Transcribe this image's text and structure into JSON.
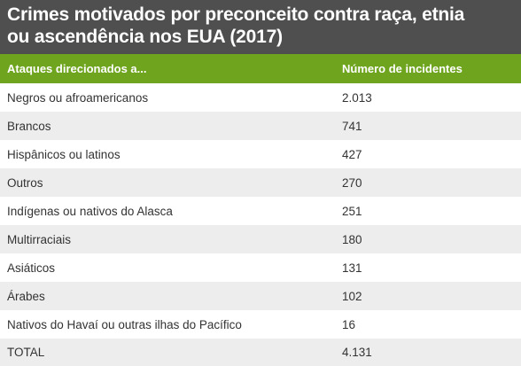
{
  "title": {
    "line1": "Crimes motivados por preconceito contra raça, etnia",
    "line2": "ou ascendência nos EUA (2017)"
  },
  "colors": {
    "title_background": "#4f4f4f",
    "header_background": "#6fa51e",
    "stripe": "#ededed"
  },
  "chart_data": {
    "type": "table",
    "title": "Crimes motivados por preconceito contra raça, etnia ou ascendência nos EUA (2017)",
    "columns": [
      "Ataques direcionados a...",
      "Número de incidentes"
    ],
    "rows": [
      {
        "label": "Negros ou afroamericanos",
        "value": "2.013"
      },
      {
        "label": "Brancos",
        "value": "741"
      },
      {
        "label": "Hispânicos ou latinos",
        "value": "427"
      },
      {
        "label": "Outros",
        "value": "270"
      },
      {
        "label": "Indígenas ou nativos do Alasca",
        "value": "251"
      },
      {
        "label": "Multirraciais",
        "value": "180"
      },
      {
        "label": "Asiáticos",
        "value": "131"
      },
      {
        "label": "Árabes",
        "value": "102"
      },
      {
        "label": "Nativos do Havaí ou outras ilhas do Pacífico",
        "value": "16"
      }
    ],
    "total": {
      "label": "TOTAL",
      "value": "4.131"
    }
  }
}
